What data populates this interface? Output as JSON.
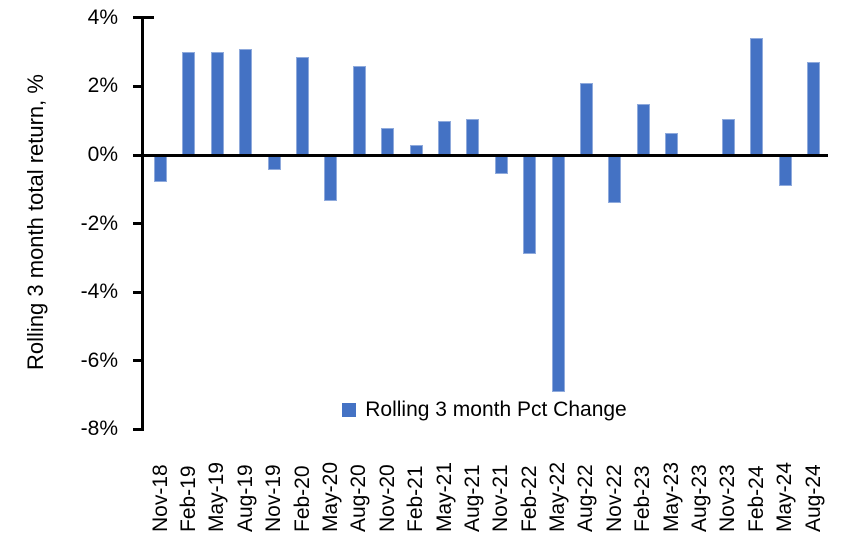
{
  "chart_data": {
    "type": "bar",
    "title": "",
    "xlabel": "",
    "ylabel": "Rolling 3 month total return, %",
    "legend_label": "Rolling 3 month Pct Change",
    "legend_position": "bottom-center",
    "grid": false,
    "ylim": [
      -8,
      4
    ],
    "ytick_step": 2,
    "yticks": [
      {
        "label": "4%",
        "value": 4
      },
      {
        "label": "2%",
        "value": 2
      },
      {
        "label": "0%",
        "value": 0
      },
      {
        "label": "-2%",
        "value": -2
      },
      {
        "label": "-4%",
        "value": -4
      },
      {
        "label": "-6%",
        "value": -6
      },
      {
        "label": "-8%",
        "value": -8
      }
    ],
    "categories": [
      "Nov-18",
      "Feb-19",
      "May-19",
      "Aug-19",
      "Nov-19",
      "Feb-20",
      "May-20",
      "Aug-20",
      "Nov-20",
      "Feb-21",
      "May-21",
      "Aug-21",
      "Nov-21",
      "Feb-22",
      "May-22",
      "Aug-22",
      "Nov-22",
      "Feb-23",
      "May-23",
      "Aug-23",
      "Nov-23",
      "Feb-24",
      "May-24",
      "Aug-24"
    ],
    "values": [
      -0.8,
      3.0,
      3.0,
      3.1,
      -0.45,
      2.85,
      -1.35,
      2.6,
      0.8,
      0.3,
      1.0,
      1.05,
      -0.55,
      -2.9,
      -6.9,
      2.1,
      -1.4,
      1.5,
      0.65,
      0.0,
      1.05,
      3.4,
      -0.9,
      2.7
    ],
    "bar_color": "#4472C4",
    "bar_border_color": "#8FAADC",
    "axis_color": "#000000",
    "text_color": "#000000"
  }
}
